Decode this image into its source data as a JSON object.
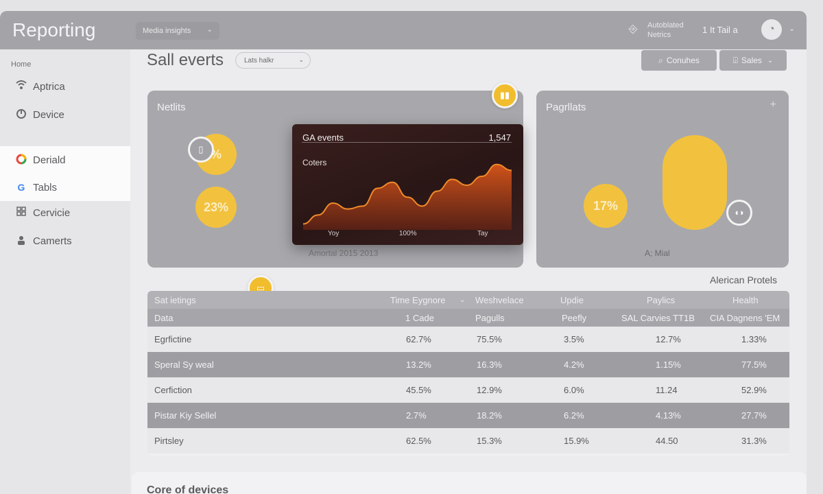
{
  "app": {
    "title": "Reporting"
  },
  "topbar": {
    "dropdown_label": "Media insights",
    "status_line1": "Autoblated",
    "status_line2": "Netrics",
    "user_label": "1 It Tail a",
    "avatar_icon": "user-icon",
    "chevron_icon": "chevron-down-icon"
  },
  "sidebar": {
    "home": "Home",
    "items": [
      {
        "label": "Aptrica",
        "icon": "wifi-icon",
        "active": false
      },
      {
        "label": "Device",
        "icon": "pie-icon",
        "active": false
      },
      {
        "label": "Deriald",
        "icon": "circle-color-icon",
        "active": true
      },
      {
        "label": "Tabls",
        "icon": "google-icon",
        "active": true
      },
      {
        "label": "Cervicie",
        "icon": "grid-icon",
        "active": false
      },
      {
        "label": "Camerts",
        "icon": "people-icon",
        "active": false
      }
    ]
  },
  "header": {
    "page_title": "Sall everts",
    "filter_label": "Lats halkr",
    "search_btn": "Conuhes",
    "sales_btn": "Sales"
  },
  "cards": {
    "left": {
      "title": "Netlits",
      "circle_top": "%",
      "circle_bottom": "23%",
      "caption": "Amortal 2015 2013"
    },
    "right": {
      "title": "Pagrllats",
      "circle": "17%",
      "caption": "A; Mial"
    }
  },
  "popup": {
    "title": "GA events",
    "value": "1,547",
    "subtitle": "Coters",
    "x_labels": [
      "Yoy",
      "100%",
      "Tay"
    ]
  },
  "chart_data": {
    "type": "line",
    "title": "GA events",
    "series": [
      {
        "values": [
          2,
          5,
          9,
          7,
          8,
          14,
          16,
          11,
          8,
          13,
          17,
          15,
          18,
          22,
          20
        ]
      }
    ],
    "xlabel": "",
    "ylabel": "",
    "color": "#f08a2a"
  },
  "table": {
    "section_title": "Alerican Protels",
    "header1": [
      "Sat ietings",
      "Time Eygnore",
      "Weshvelace",
      "Updie",
      "Paylics",
      "Health"
    ],
    "header2": [
      "Data",
      "1 Cade",
      "Pagulls",
      "Peefly",
      "SAL Carvies TT1B",
      "CIA Dagnens 'EM"
    ],
    "rows": [
      [
        "Egrfictine",
        "62.7%",
        "75.5%",
        "3.5%",
        "12.7%",
        "1.33%"
      ],
      [
        "Speral Sy weal",
        "13.2%",
        "16.3%",
        "4.2%",
        "1.15%",
        "77.5%"
      ],
      [
        "Cerfiction",
        "45.5%",
        "12.9%",
        "6.0%",
        "11.24",
        "52.9%"
      ],
      [
        "Pistar Kiy Sellel",
        "2.7%",
        "18.2%",
        "6.2%",
        "4.13%",
        "27.7%"
      ],
      [
        "Pirtsley",
        "62.5%",
        "15.3%",
        "15.9%",
        "44.50",
        "31.3%"
      ]
    ]
  },
  "bottom": {
    "title": "Core of devices"
  },
  "colors": {
    "accent": "#f2c23e",
    "chart_line": "#f08a2a"
  }
}
